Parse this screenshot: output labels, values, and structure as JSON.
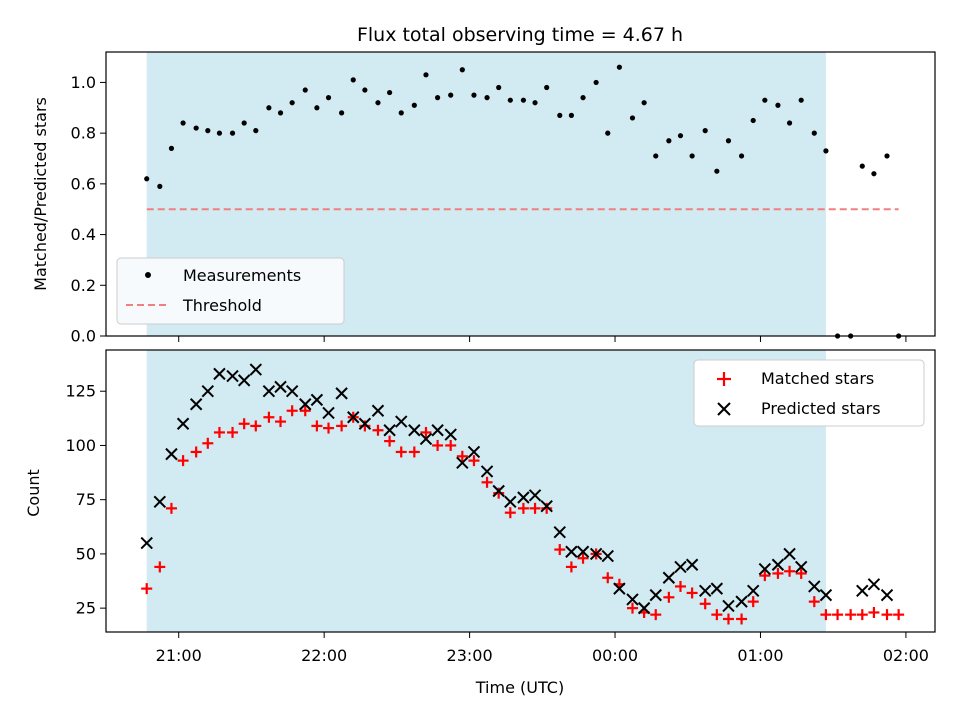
{
  "chart_data": [
    {
      "type": "scatter",
      "title": "Flux total observing time = 4.67 h",
      "ylabel": "Matched/Predicted stars",
      "xlabel": "",
      "x_unit": "hours since 20:00 UTC",
      "ylim": [
        0,
        1.12
      ],
      "yticks": [
        0.0,
        0.2,
        0.4,
        0.6,
        0.8,
        1.0
      ],
      "yticklabels": [
        "0.0",
        "0.2",
        "0.4",
        "0.6",
        "0.8",
        "1.0"
      ],
      "legend": {
        "placement": "lower-left",
        "entries": [
          "Measurements",
          "Threshold"
        ]
      },
      "shaded_region": {
        "x": [
          0.78,
          5.45
        ],
        "color": "#add8e6"
      },
      "threshold": {
        "name": "Threshold",
        "y": 0.5,
        "x": [
          0.78,
          5.95
        ],
        "color": "#f08080",
        "style": "dashed"
      },
      "series": [
        {
          "name": "Measurements",
          "marker": "dot",
          "color": "#000000",
          "points": [
            [
              0.78,
              0.62
            ],
            [
              0.87,
              0.59
            ],
            [
              0.95,
              0.74
            ],
            [
              1.03,
              0.84
            ],
            [
              1.12,
              0.82
            ],
            [
              1.2,
              0.81
            ],
            [
              1.28,
              0.8
            ],
            [
              1.37,
              0.8
            ],
            [
              1.45,
              0.84
            ],
            [
              1.53,
              0.81
            ],
            [
              1.62,
              0.9
            ],
            [
              1.7,
              0.88
            ],
            [
              1.78,
              0.92
            ],
            [
              1.87,
              0.97
            ],
            [
              1.95,
              0.9
            ],
            [
              2.03,
              0.94
            ],
            [
              2.12,
              0.88
            ],
            [
              2.2,
              1.01
            ],
            [
              2.28,
              0.97
            ],
            [
              2.37,
              0.92
            ],
            [
              2.45,
              0.96
            ],
            [
              2.53,
              0.88
            ],
            [
              2.62,
              0.91
            ],
            [
              2.7,
              1.03
            ],
            [
              2.78,
              0.94
            ],
            [
              2.87,
              0.95
            ],
            [
              2.95,
              1.05
            ],
            [
              3.03,
              0.95
            ],
            [
              3.12,
              0.94
            ],
            [
              3.2,
              0.98
            ],
            [
              3.28,
              0.93
            ],
            [
              3.37,
              0.93
            ],
            [
              3.45,
              0.92
            ],
            [
              3.53,
              0.98
            ],
            [
              3.62,
              0.87
            ],
            [
              3.7,
              0.87
            ],
            [
              3.78,
              0.94
            ],
            [
              3.87,
              1.0
            ],
            [
              3.95,
              0.8
            ],
            [
              4.03,
              1.06
            ],
            [
              4.12,
              0.86
            ],
            [
              4.2,
              0.92
            ],
            [
              4.28,
              0.71
            ],
            [
              4.37,
              0.77
            ],
            [
              4.45,
              0.79
            ],
            [
              4.53,
              0.71
            ],
            [
              4.62,
              0.81
            ],
            [
              4.7,
              0.65
            ],
            [
              4.78,
              0.77
            ],
            [
              4.87,
              0.71
            ],
            [
              4.95,
              0.85
            ],
            [
              5.03,
              0.93
            ],
            [
              5.12,
              0.91
            ],
            [
              5.2,
              0.84
            ],
            [
              5.28,
              0.93
            ],
            [
              5.37,
              0.8
            ],
            [
              5.45,
              0.73
            ],
            [
              5.53,
              0.0
            ],
            [
              5.62,
              0.0
            ],
            [
              5.7,
              0.67
            ],
            [
              5.78,
              0.64
            ],
            [
              5.87,
              0.71
            ],
            [
              5.95,
              0.0
            ]
          ]
        }
      ]
    },
    {
      "type": "scatter",
      "title": "",
      "ylabel": "Count",
      "xlabel": "Time (UTC)",
      "x_unit": "hours since 20:00 UTC",
      "xlim": [
        0.5,
        6.2
      ],
      "ylim": [
        14,
        144
      ],
      "xticks": [
        1,
        2,
        3,
        4,
        5,
        6
      ],
      "xticklabels": [
        "21:00",
        "22:00",
        "23:00",
        "00:00",
        "01:00",
        "02:00"
      ],
      "yticks": [
        25,
        50,
        75,
        100,
        125
      ],
      "yticklabels": [
        "25",
        "50",
        "75",
        "100",
        "125"
      ],
      "legend": {
        "placement": "upper-right",
        "entries": [
          "Matched stars",
          "Predicted stars"
        ]
      },
      "shaded_region": {
        "x": [
          0.78,
          5.45
        ],
        "color": "#add8e6"
      },
      "series": [
        {
          "name": "Matched stars",
          "marker": "plus",
          "color": "#ff0000",
          "points": [
            [
              0.78,
              34
            ],
            [
              0.87,
              44
            ],
            [
              0.95,
              71
            ],
            [
              1.03,
              93
            ],
            [
              1.12,
              97
            ],
            [
              1.2,
              101
            ],
            [
              1.28,
              106
            ],
            [
              1.37,
              106
            ],
            [
              1.45,
              110
            ],
            [
              1.53,
              109
            ],
            [
              1.62,
              113
            ],
            [
              1.7,
              111
            ],
            [
              1.78,
              116
            ],
            [
              1.87,
              116
            ],
            [
              1.95,
              109
            ],
            [
              2.03,
              108
            ],
            [
              2.12,
              109
            ],
            [
              2.2,
              113
            ],
            [
              2.28,
              109
            ],
            [
              2.37,
              107
            ],
            [
              2.45,
              102
            ],
            [
              2.53,
              97
            ],
            [
              2.62,
              97
            ],
            [
              2.7,
              106
            ],
            [
              2.78,
              100
            ],
            [
              2.87,
              100
            ],
            [
              2.95,
              95
            ],
            [
              3.03,
              93
            ],
            [
              3.12,
              83
            ],
            [
              3.2,
              78
            ],
            [
              3.28,
              69
            ],
            [
              3.37,
              71
            ],
            [
              3.45,
              71
            ],
            [
              3.53,
              71
            ],
            [
              3.62,
              52
            ],
            [
              3.7,
              44
            ],
            [
              3.78,
              48
            ],
            [
              3.87,
              50
            ],
            [
              3.95,
              39
            ],
            [
              4.03,
              36
            ],
            [
              4.12,
              25
            ],
            [
              4.2,
              23
            ],
            [
              4.28,
              22
            ],
            [
              4.37,
              30
            ],
            [
              4.45,
              35
            ],
            [
              4.53,
              32
            ],
            [
              4.62,
              27
            ],
            [
              4.7,
              22
            ],
            [
              4.78,
              20
            ],
            [
              4.87,
              20
            ],
            [
              4.95,
              28
            ],
            [
              5.03,
              40
            ],
            [
              5.12,
              41
            ],
            [
              5.2,
              42
            ],
            [
              5.28,
              41
            ],
            [
              5.37,
              28
            ],
            [
              5.45,
              22
            ],
            [
              5.53,
              22
            ],
            [
              5.62,
              22
            ],
            [
              5.7,
              22
            ],
            [
              5.78,
              23
            ],
            [
              5.87,
              22
            ],
            [
              5.95,
              22
            ]
          ]
        },
        {
          "name": "Predicted stars",
          "marker": "x",
          "color": "#000000",
          "points": [
            [
              0.78,
              55
            ],
            [
              0.87,
              74
            ],
            [
              0.95,
              96
            ],
            [
              1.03,
              110
            ],
            [
              1.12,
              119
            ],
            [
              1.2,
              125
            ],
            [
              1.28,
              133
            ],
            [
              1.37,
              132
            ],
            [
              1.45,
              130
            ],
            [
              1.53,
              135
            ],
            [
              1.62,
              125
            ],
            [
              1.7,
              127
            ],
            [
              1.78,
              125
            ],
            [
              1.87,
              119
            ],
            [
              1.95,
              121
            ],
            [
              2.03,
              115
            ],
            [
              2.12,
              124
            ],
            [
              2.2,
              113
            ],
            [
              2.28,
              110
            ],
            [
              2.37,
              116
            ],
            [
              2.45,
              107
            ],
            [
              2.53,
              111
            ],
            [
              2.62,
              107
            ],
            [
              2.7,
              103
            ],
            [
              2.78,
              107
            ],
            [
              2.87,
              105
            ],
            [
              2.95,
              92
            ],
            [
              3.03,
              97
            ],
            [
              3.12,
              88
            ],
            [
              3.2,
              79
            ],
            [
              3.28,
              74
            ],
            [
              3.37,
              76
            ],
            [
              3.45,
              77
            ],
            [
              3.53,
              72
            ],
            [
              3.62,
              60
            ],
            [
              3.7,
              51
            ],
            [
              3.78,
              51
            ],
            [
              3.87,
              50
            ],
            [
              3.95,
              49
            ],
            [
              4.03,
              34
            ],
            [
              4.12,
              29
            ],
            [
              4.2,
              25
            ],
            [
              4.28,
              31
            ],
            [
              4.37,
              39
            ],
            [
              4.45,
              44
            ],
            [
              4.53,
              45
            ],
            [
              4.62,
              33
            ],
            [
              4.7,
              34
            ],
            [
              4.78,
              26
            ],
            [
              4.87,
              28
            ],
            [
              4.95,
              33
            ],
            [
              5.03,
              43
            ],
            [
              5.12,
              45
            ],
            [
              5.2,
              50
            ],
            [
              5.28,
              44
            ],
            [
              5.37,
              35
            ],
            [
              5.45,
              31
            ],
            [
              5.7,
              33
            ],
            [
              5.78,
              36
            ],
            [
              5.87,
              31
            ]
          ]
        }
      ]
    }
  ]
}
